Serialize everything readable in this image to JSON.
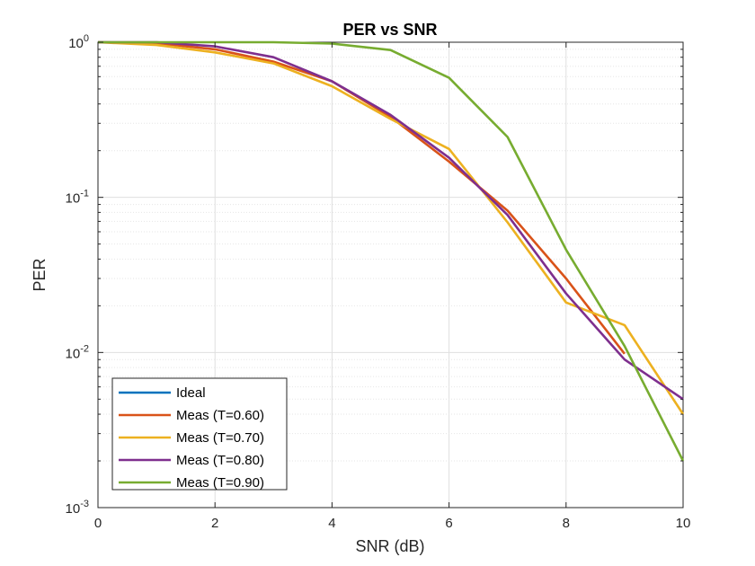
{
  "chart_data": {
    "type": "line",
    "title": "PER vs SNR",
    "xlabel": "SNR (dB)",
    "ylabel": "PER",
    "xlim": [
      0,
      10
    ],
    "ylim": [
      0.001,
      1
    ],
    "yscale": "log",
    "grid": true,
    "minor_grid": true,
    "legend_location": "bottom-left",
    "x_ticks": [
      "0",
      "2",
      "4",
      "6",
      "8",
      "10"
    ],
    "y_ticks": [
      {
        "base": "10",
        "exp": "0",
        "value": 1
      },
      {
        "base": "10",
        "exp": "-1",
        "value": 0.1
      },
      {
        "base": "10",
        "exp": "-2",
        "value": 0.01
      },
      {
        "base": "10",
        "exp": "-3",
        "value": 0.001
      }
    ],
    "series": [
      {
        "name": "Ideal",
        "color": "#0072BD",
        "x": [],
        "y": []
      },
      {
        "name": "Meas (T=0.60)",
        "color": "#D95319",
        "x": [
          0,
          1,
          2,
          3,
          4,
          5,
          6,
          7,
          8,
          9
        ],
        "y": [
          1.0,
          0.985,
          0.9,
          0.75,
          0.56,
          0.33,
          0.17,
          0.082,
          0.03,
          0.0098
        ]
      },
      {
        "name": "Meas (T=0.70)",
        "color": "#EDB120",
        "x": [
          0,
          1,
          2,
          3,
          4,
          5,
          6,
          7,
          8,
          9,
          10
        ],
        "y": [
          1.0,
          0.96,
          0.86,
          0.73,
          0.52,
          0.32,
          0.205,
          0.069,
          0.021,
          0.015,
          0.004
        ]
      },
      {
        "name": "Meas (T=0.80)",
        "color": "#7E2F8E",
        "x": [
          0,
          1,
          2,
          3,
          4,
          5,
          6,
          7,
          8,
          9,
          10
        ],
        "y": [
          1.0,
          1.0,
          0.94,
          0.8,
          0.56,
          0.34,
          0.18,
          0.077,
          0.024,
          0.009,
          0.005
        ]
      },
      {
        "name": "Meas (T=0.90)",
        "color": "#77AC30",
        "x": [
          0,
          1,
          2,
          3,
          4,
          5,
          6,
          7,
          8,
          9,
          10
        ],
        "y": [
          1.0,
          1.0,
          1.0,
          1.0,
          0.98,
          0.89,
          0.59,
          0.245,
          0.046,
          0.011,
          0.002
        ]
      }
    ]
  }
}
